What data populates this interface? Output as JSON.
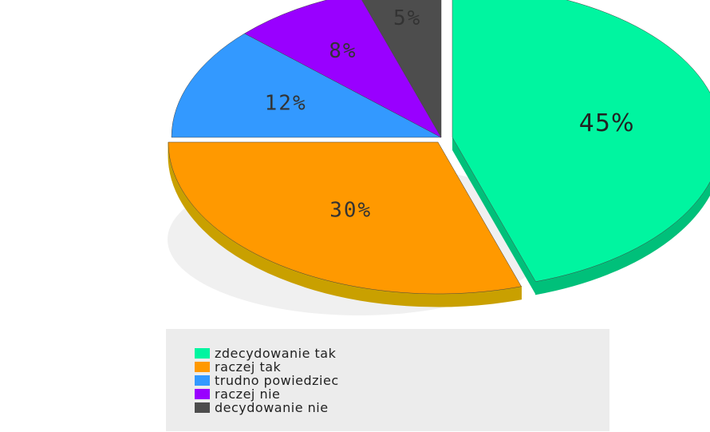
{
  "chart_data": {
    "type": "pie",
    "style": "3d-exploded",
    "legend_position": "bottom",
    "categories": [
      "zdecydowanie tak",
      "raczej tak",
      "trudno powiedziec",
      "raczej nie",
      "decydowanie nie"
    ],
    "values": [
      45,
      30,
      12,
      8,
      5
    ],
    "labels": [
      "45%",
      "30%",
      "12%",
      "8%",
      "5%"
    ],
    "colors": [
      "#00f5a0",
      "#ff9900",
      "#3399ff",
      "#9900ff",
      "#4d4d4d"
    ],
    "side_colors": [
      "#00c07a",
      "#c9a000",
      "#2a70c0",
      "#6a00b0",
      "#2a2a2a"
    ],
    "exploded": [
      true,
      true,
      false,
      false,
      false
    ]
  }
}
